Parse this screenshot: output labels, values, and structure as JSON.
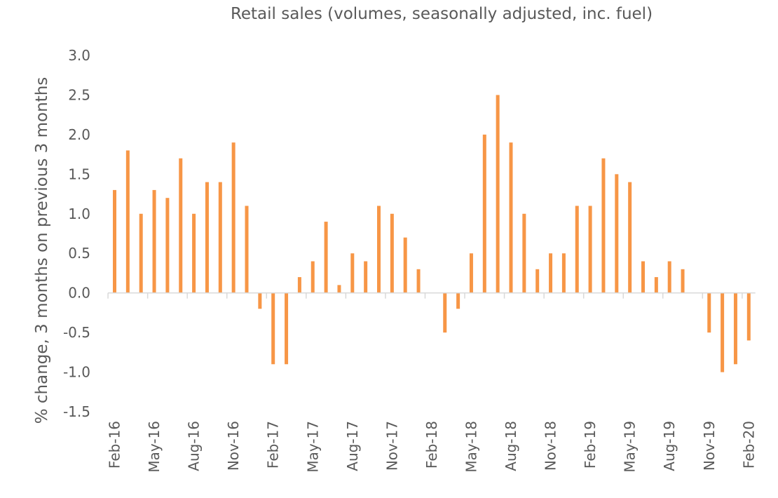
{
  "chart_data": {
    "type": "bar",
    "title": "Retail sales (volumes, seasonally adjusted, inc. fuel)",
    "xlabel": "",
    "ylabel": "% change, 3 months on previous 3 months",
    "ylim": [
      -1.5,
      3.0
    ],
    "yticks": [
      "3.0",
      "2.5",
      "2.0",
      "1.5",
      "1.0",
      "0.5",
      "0.0",
      "-0.5",
      "-1.0",
      "-1.5"
    ],
    "categories": [
      "Feb-16",
      "Mar-16",
      "Apr-16",
      "May-16",
      "Jun-16",
      "Jul-16",
      "Aug-16",
      "Sep-16",
      "Oct-16",
      "Nov-16",
      "Dec-16",
      "Jan-17",
      "Feb-17",
      "Mar-17",
      "Apr-17",
      "May-17",
      "Jun-17",
      "Jul-17",
      "Aug-17",
      "Sep-17",
      "Oct-17",
      "Nov-17",
      "Dec-17",
      "Jan-18",
      "Feb-18",
      "Mar-18",
      "Apr-18",
      "May-18",
      "Jun-18",
      "Jul-18",
      "Aug-18",
      "Sep-18",
      "Oct-18",
      "Nov-18",
      "Dec-18",
      "Jan-19",
      "Feb-19",
      "Mar-19",
      "Apr-19",
      "May-19",
      "Jun-19",
      "Jul-19",
      "Aug-19",
      "Sep-19",
      "Oct-19",
      "Nov-19",
      "Dec-19",
      "Jan-20",
      "Feb-20"
    ],
    "x_tick_labels": [
      "Feb-16",
      "May-16",
      "Aug-16",
      "Nov-16",
      "Feb-17",
      "May-17",
      "Aug-17",
      "Nov-17",
      "Feb-18",
      "May-18",
      "Aug-18",
      "Nov-18",
      "Feb-19",
      "May-19",
      "Aug-19",
      "Nov-19",
      "Feb-20"
    ],
    "values": [
      1.3,
      1.8,
      1.0,
      1.3,
      1.2,
      1.7,
      1.0,
      1.4,
      1.4,
      1.9,
      1.1,
      -0.2,
      -0.9,
      -0.9,
      0.2,
      0.4,
      0.9,
      0.1,
      0.5,
      0.4,
      1.1,
      1.0,
      0.7,
      0.3,
      0.0,
      -0.5,
      -0.2,
      0.5,
      2.0,
      2.5,
      1.9,
      1.0,
      0.3,
      0.5,
      0.5,
      1.1,
      1.1,
      1.7,
      1.5,
      1.4,
      0.4,
      0.2,
      0.4,
      0.3,
      0.0,
      -0.5,
      -1.0,
      -0.9,
      -0.6
    ],
    "bar_color": "#F79646",
    "axis_color": "#D9D9D9",
    "text_color": "#595959",
    "grid": false,
    "legend": "none"
  }
}
